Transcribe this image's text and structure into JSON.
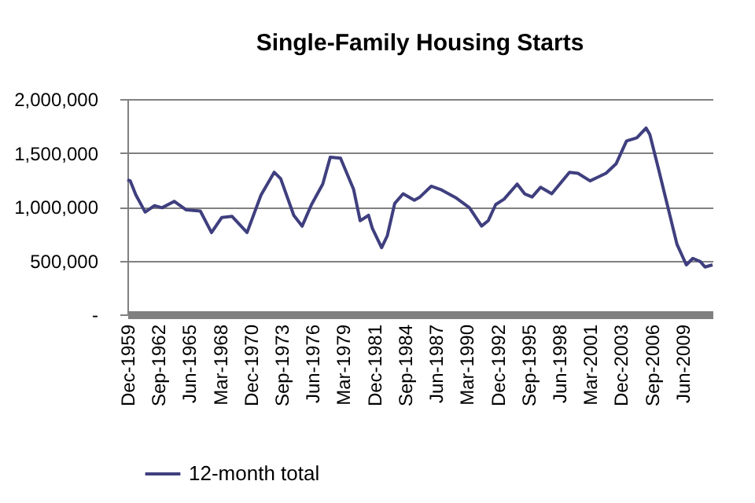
{
  "chart_data": {
    "type": "line",
    "title": "Single-Family Housing Starts",
    "x": [
      "1959-12",
      "1960-03",
      "1960-09",
      "1961-07",
      "1962-05",
      "1963-01",
      "1964-02",
      "1965-03",
      "1966-06",
      "1967-06",
      "1968-05",
      "1969-04",
      "1970-08",
      "1971-11",
      "1973-01",
      "1973-08",
      "1974-10",
      "1975-07",
      "1976-05",
      "1977-05",
      "1978-01",
      "1978-12",
      "1980-02",
      "1980-09",
      "1981-06",
      "1981-10",
      "1982-08",
      "1983-02",
      "1983-10",
      "1984-07",
      "1985-07",
      "1986-01",
      "1987-01",
      "1987-11",
      "1989-04",
      "1990-06",
      "1991-07",
      "1992-02",
      "1992-10",
      "1993-07",
      "1994-09",
      "1995-05",
      "1996-01",
      "1996-10",
      "1997-10",
      "1999-05",
      "2000-02",
      "2001-03",
      "2002-08",
      "2003-07",
      "2004-06",
      "2005-05",
      "2006-03",
      "2006-07",
      "2007-04",
      "2008-03",
      "2008-12",
      "2009-10",
      "2010-05",
      "2011-01",
      "2011-06",
      "2012-02"
    ],
    "series": [
      {
        "name": "12-month total",
        "color": "#3f3f7f",
        "values": [
          1250000,
          1240000,
          1110000,
          950000,
          1010000,
          990000,
          1050000,
          970000,
          960000,
          760000,
          900000,
          910000,
          760000,
          1110000,
          1320000,
          1260000,
          920000,
          820000,
          1020000,
          1210000,
          1460000,
          1450000,
          1160000,
          870000,
          920000,
          800000,
          620000,
          730000,
          1030000,
          1120000,
          1060000,
          1090000,
          1190000,
          1160000,
          1080000,
          990000,
          820000,
          870000,
          1020000,
          1070000,
          1210000,
          1120000,
          1090000,
          1180000,
          1120000,
          1320000,
          1310000,
          1240000,
          1310000,
          1400000,
          1610000,
          1640000,
          1730000,
          1670000,
          1360000,
          970000,
          650000,
          460000,
          520000,
          490000,
          440000,
          460000
        ]
      }
    ],
    "xlim": [
      "1959-12",
      "2012-02"
    ],
    "xticks": [
      {
        "value": "1959-12",
        "label": "Dec-1959"
      },
      {
        "value": "1962-09",
        "label": "Sep-1962"
      },
      {
        "value": "1965-06",
        "label": "Jun-1965"
      },
      {
        "value": "1968-03",
        "label": "Mar-1968"
      },
      {
        "value": "1970-12",
        "label": "Dec-1970"
      },
      {
        "value": "1973-09",
        "label": "Sep-1973"
      },
      {
        "value": "1976-06",
        "label": "Jun-1976"
      },
      {
        "value": "1979-03",
        "label": "Mar-1979"
      },
      {
        "value": "1981-12",
        "label": "Dec-1981"
      },
      {
        "value": "1984-09",
        "label": "Sep-1984"
      },
      {
        "value": "1987-06",
        "label": "Jun-1987"
      },
      {
        "value": "1990-03",
        "label": "Mar-1990"
      },
      {
        "value": "1992-12",
        "label": "Dec-1992"
      },
      {
        "value": "1995-09",
        "label": "Sep-1995"
      },
      {
        "value": "1998-06",
        "label": "Jun-1998"
      },
      {
        "value": "2001-03",
        "label": "Mar-2001"
      },
      {
        "value": "2003-12",
        "label": "Dec-2003"
      },
      {
        "value": "2006-09",
        "label": "Sep-2006"
      },
      {
        "value": "2009-06",
        "label": "Jun-2009"
      }
    ],
    "ylim": [
      0,
      2000000
    ],
    "yticks": [
      {
        "value": 0,
        "label": "-"
      },
      {
        "value": 500000,
        "label": "500,000"
      },
      {
        "value": 1000000,
        "label": "1,000,000"
      },
      {
        "value": 1500000,
        "label": "1,500,000"
      },
      {
        "value": 2000000,
        "label": "2,000,000"
      }
    ],
    "grid": "y",
    "legend": "bottom",
    "marker": "none",
    "line_style": "solid"
  }
}
